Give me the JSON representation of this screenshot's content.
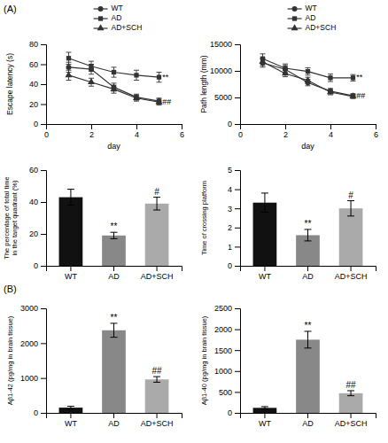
{
  "chart_data": [
    {
      "type": "line",
      "title": "(A)",
      "x_label": "day",
      "y_label": "Escape latency (s)",
      "x": [
        1,
        2,
        3,
        4,
        5
      ],
      "xlim": [
        0,
        6
      ],
      "xticks": [
        0,
        2,
        4,
        6
      ],
      "ylim": [
        0,
        80
      ],
      "yticks": [
        0,
        20,
        40,
        60,
        80
      ],
      "grid": false,
      "legend": "top",
      "series": [
        {
          "name": "WT",
          "color": "#333333",
          "marker": "circle",
          "values": [
            57,
            55,
            37,
            27,
            23
          ],
          "errors": [
            5,
            5,
            4,
            3,
            3
          ]
        },
        {
          "name": "AD",
          "color": "#333333",
          "marker": "square",
          "values": [
            66,
            58,
            52,
            49,
            47
          ],
          "errors": [
            6,
            5,
            5,
            5,
            5
          ]
        },
        {
          "name": "AD+SCH",
          "color": "#333333",
          "marker": "triangle",
          "values": [
            49,
            42,
            35,
            26,
            22
          ],
          "errors": [
            5,
            4,
            4,
            3,
            3
          ]
        }
      ],
      "annotations": [
        {
          "text": "**",
          "x": 5.15,
          "y": 47
        },
        {
          "text": "##",
          "x": 5.15,
          "y": 22
        }
      ]
    },
    {
      "type": "line",
      "x_label": "day",
      "y_label": "Path length (mm)",
      "x": [
        1,
        2,
        3,
        4,
        5
      ],
      "xlim": [
        0,
        6
      ],
      "xticks": [
        0,
        2,
        4,
        6
      ],
      "ylim": [
        0,
        15000
      ],
      "yticks": [
        0,
        5000,
        10000,
        15000
      ],
      "grid": false,
      "legend": "top",
      "series": [
        {
          "name": "WT",
          "color": "#333333",
          "marker": "circle",
          "values": [
            11500,
            10300,
            7800,
            6200,
            5300
          ],
          "errors": [
            800,
            700,
            600,
            500,
            400
          ]
        },
        {
          "name": "AD",
          "color": "#333333",
          "marker": "square",
          "values": [
            12300,
            10500,
            9900,
            8700,
            8700
          ],
          "errors": [
            900,
            800,
            700,
            700,
            600
          ]
        },
        {
          "name": "AD+SCH",
          "color": "#333333",
          "marker": "triangle",
          "values": [
            11700,
            9500,
            8200,
            6000,
            5200
          ],
          "errors": [
            700,
            600,
            600,
            500,
            400
          ]
        }
      ],
      "annotations": [
        {
          "text": "**",
          "x": 5.15,
          "y": 8700
        },
        {
          "text": "##",
          "x": 5.15,
          "y": 5200
        }
      ]
    },
    {
      "type": "bar",
      "y_label": "The percentage of total time\nin the target quadrant (%)",
      "categories": [
        "WT",
        "AD",
        "AD+SCH"
      ],
      "values": [
        43,
        19,
        39
      ],
      "errors": [
        5,
        2,
        4
      ],
      "colors": [
        "#111111",
        "#888888",
        "#aaaaaa"
      ],
      "ylim": [
        0,
        60
      ],
      "yticks": [
        0,
        20,
        40,
        60
      ],
      "grid": false,
      "annotations": [
        {
          "text": "**",
          "category": "AD"
        },
        {
          "text": "#",
          "category": "AD+SCH"
        }
      ]
    },
    {
      "type": "bar",
      "y_label": "Time of crossing platform",
      "categories": [
        "WT",
        "AD",
        "AD+SCH"
      ],
      "values": [
        3.3,
        1.6,
        3.0
      ],
      "errors": [
        0.5,
        0.3,
        0.4
      ],
      "colors": [
        "#111111",
        "#888888",
        "#aaaaaa"
      ],
      "ylim": [
        0,
        5
      ],
      "yticks": [
        0,
        1,
        2,
        3,
        4,
        5
      ],
      "grid": false,
      "annotations": [
        {
          "text": "**",
          "category": "AD"
        },
        {
          "text": "#",
          "category": "AD+SCH"
        }
      ]
    },
    {
      "type": "bar",
      "title": "(B)",
      "y_label": "Aβ1-42 (pg/mg in brain tissue)",
      "categories": [
        "WT",
        "AD",
        "AD+SCH"
      ],
      "values": [
        150,
        2370,
        960
      ],
      "errors": [
        40,
        200,
        80
      ],
      "colors": [
        "#111111",
        "#888888",
        "#aaaaaa"
      ],
      "ylim": [
        0,
        3000
      ],
      "yticks": [
        0,
        1000,
        2000,
        3000
      ],
      "grid": false,
      "annotations": [
        {
          "text": "**",
          "category": "AD"
        },
        {
          "text": "##",
          "category": "AD+SCH"
        }
      ]
    },
    {
      "type": "bar",
      "y_label": "Aβ1-40 (pg/mg in brain tissue)",
      "categories": [
        "WT",
        "AD",
        "AD+SCH"
      ],
      "values": [
        120,
        1750,
        470
      ],
      "errors": [
        30,
        200,
        60
      ],
      "colors": [
        "#111111",
        "#888888",
        "#aaaaaa"
      ],
      "ylim": [
        0,
        2500
      ],
      "yticks": [
        0,
        500,
        1000,
        1500,
        2000,
        2500
      ],
      "grid": false,
      "annotations": [
        {
          "text": "**",
          "category": "AD"
        },
        {
          "text": "##",
          "category": "AD+SCH"
        }
      ]
    }
  ]
}
